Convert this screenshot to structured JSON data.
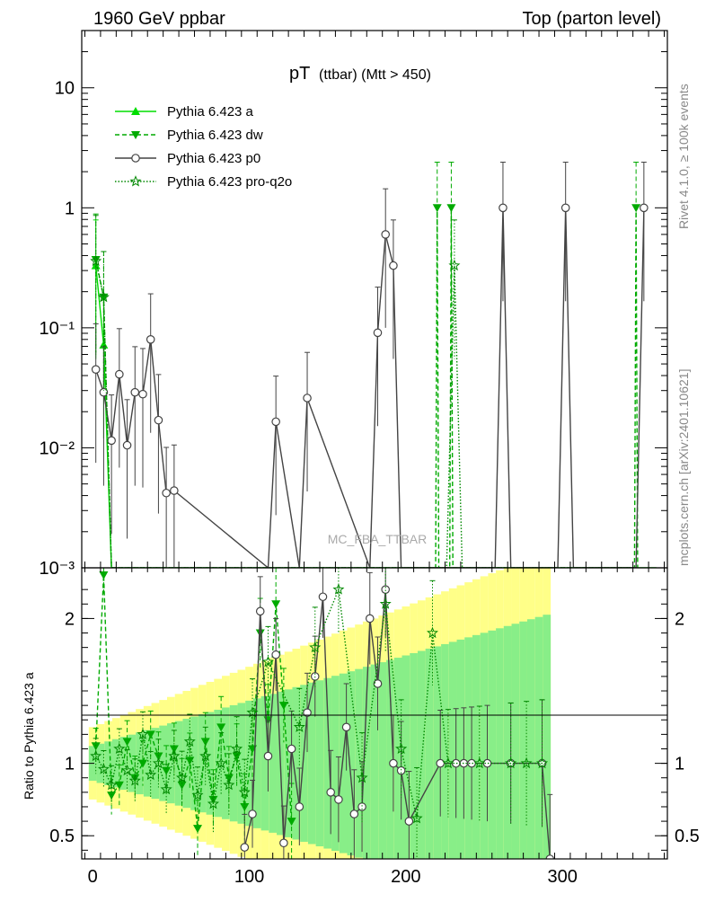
{
  "header": {
    "left": "1960 GeV ppbar",
    "right": "Top (parton level)"
  },
  "side_labels": {
    "rivet": "Rivet 4.1.0, ≥ 100k events",
    "mcplots": "mcplots.cern.ch [arXiv:2401.10621]"
  },
  "watermark": "MC_FBA_TTBAR",
  "title_main": "pT",
  "title_sub": "(ttbar) (Mtt > 450)",
  "colors": {
    "a": "#00dd00",
    "dw": "#00aa00",
    "p0": "#444444",
    "q2o": "#008800",
    "band_yellow": "#ffff88",
    "band_green": "#88ee88"
  },
  "legend": [
    {
      "key": "a",
      "label": "Pythia 6.423 a",
      "marker": "triangle-up",
      "dash": "solid"
    },
    {
      "key": "dw",
      "label": "Pythia 6.423 dw",
      "marker": "triangle-down",
      "dash": "dashed"
    },
    {
      "key": "p0",
      "label": "Pythia 6.423 p0",
      "marker": "circle",
      "dash": "solid"
    },
    {
      "key": "q2o",
      "label": "Pythia 6.423 pro-q2o",
      "marker": "star",
      "dash": "dotted"
    }
  ],
  "chart_data": [
    {
      "type": "line",
      "panel": "main",
      "yscale": "log",
      "xlim": [
        -7,
        367
      ],
      "ylim": [
        0.001,
        30
      ],
      "yticks": [
        {
          "v": 10,
          "label": "10"
        },
        {
          "v": 1,
          "label": "1"
        },
        {
          "v": 0.1,
          "label": "10⁻¹"
        },
        {
          "v": 0.01,
          "label": "10⁻²"
        },
        {
          "v": 0.001,
          "label": "10⁻³"
        }
      ],
      "xlabel": "",
      "ylabel": "",
      "series": [
        {
          "key": "a",
          "name": "Pythia 6.423 a",
          "x": [
            2,
            7,
            12,
            20,
            30,
            40,
            50,
            60,
            80,
            100,
            120,
            140,
            160,
            180,
            200,
            220,
            240,
            260,
            280,
            300,
            320,
            340,
            360
          ],
          "y": [
            0.33,
            0.072,
            0.001,
            0.001,
            0.001,
            0.001,
            0.001,
            0.001,
            0.001,
            0.001,
            0.001,
            0.001,
            0.001,
            0.001,
            0.001,
            0.001,
            0.001,
            0.001,
            0.001,
            0.001,
            0.001,
            0.001,
            0.001
          ]
        },
        {
          "key": "dw",
          "name": "Pythia 6.423 dw",
          "x": [
            2,
            7,
            12,
            100,
            219,
            220,
            221,
            228,
            229,
            230,
            346,
            347,
            348
          ],
          "y": [
            0.37,
            0.18,
            0.001,
            0.001,
            0.001,
            1.0,
            0.001,
            0.001,
            1.0,
            0.001,
            0.001,
            1.0,
            0.001
          ]
        },
        {
          "key": "p0",
          "name": "Pythia 6.423 p0",
          "x": [
            2,
            7,
            12,
            17,
            22,
            27,
            32,
            37,
            42,
            47,
            52,
            112,
            117,
            132,
            137,
            177,
            182,
            187,
            192,
            197,
            257,
            262,
            267,
            297,
            302,
            307,
            347,
            352
          ],
          "y": [
            0.045,
            0.029,
            0.0115,
            0.041,
            0.0105,
            0.029,
            0.028,
            0.08,
            0.017,
            0.0042,
            0.0044,
            0.001,
            0.0165,
            0.001,
            0.026,
            0.001,
            0.091,
            0.6,
            0.33,
            0.001,
            0.001,
            1.0,
            0.001,
            0.001,
            1.0,
            0.001,
            0.001,
            1.0
          ]
        },
        {
          "key": "q2o",
          "name": "Pythia 6.423 pro-q2o",
          "x": [
            2,
            7,
            12,
            100,
            226,
            231,
            236,
            345
          ],
          "y": [
            0.36,
            0.18,
            0.001,
            0.001,
            0.001,
            0.33,
            0.001,
            0.001
          ]
        }
      ]
    },
    {
      "type": "line",
      "panel": "ratio",
      "yscale": "linear",
      "xlim": [
        -7,
        367
      ],
      "ylim": [
        0.34,
        2.35
      ],
      "xticks": [
        0,
        100,
        200,
        300
      ],
      "yticks": [
        0.5,
        1,
        2
      ],
      "ylabel": "Ratio to Pythia 6.423 a",
      "xlabel": "",
      "series": [
        {
          "key": "dw",
          "name": "Pythia 6.423 dw",
          "x": [
            2,
            7,
            12,
            17,
            22,
            27,
            32,
            37,
            42,
            47,
            52,
            57,
            62,
            67,
            72,
            77,
            82,
            87,
            92,
            97,
            102,
            107,
            112,
            117,
            122,
            127
          ],
          "y": [
            1.12,
            2.3,
            0.78,
            0.85,
            1.15,
            0.9,
            1.0,
            1.2,
            1.05,
            0.95,
            1.1,
            0.85,
            1.02,
            0.55,
            1.15,
            0.75,
            1.25,
            0.9,
            1.05,
            0.7,
            1.1,
            1.9,
            1.3,
            2.1,
            1.4,
            0.6
          ]
        },
        {
          "key": "p0",
          "name": "Pythia 6.423 p0",
          "x": [
            97,
            102,
            107,
            112,
            117,
            122,
            127,
            132,
            137,
            142,
            147,
            152,
            157,
            162,
            167,
            172,
            177,
            182,
            187,
            192,
            197,
            202,
            222,
            232,
            237,
            242,
            252,
            267,
            287,
            292
          ],
          "y": [
            0.42,
            0.65,
            2.05,
            1.05,
            1.75,
            0.45,
            1.1,
            0.7,
            1.35,
            1.6,
            2.15,
            0.8,
            0.75,
            1.25,
            0.65,
            0.7,
            2.0,
            1.55,
            2.2,
            1.0,
            0.95,
            0.6,
            1.0,
            1.0,
            1.0,
            1.0,
            1.0,
            1.0,
            1.0,
            0.34
          ]
        },
        {
          "key": "q2o",
          "name": "Pythia 6.423 pro-q2o",
          "x": [
            2,
            7,
            12,
            17,
            22,
            27,
            32,
            37,
            42,
            47,
            52,
            57,
            62,
            67,
            72,
            77,
            82,
            87,
            92,
            97,
            102,
            112,
            132,
            142,
            157,
            172,
            187,
            197,
            207,
            217,
            227,
            247,
            267,
            277,
            287
          ],
          "y": [
            1.05,
            0.96,
            0.85,
            1.1,
            0.95,
            0.88,
            1.2,
            0.92,
            1.0,
            0.82,
            1.05,
            0.9,
            1.15,
            0.78,
            1.05,
            0.72,
            1.0,
            0.85,
            1.1,
            0.8,
            1.35,
            1.7,
            1.25,
            1.8,
            2.2,
            0.9,
            2.1,
            1.1,
            0.62,
            1.9,
            1.0,
            1.0,
            1.0,
            1.0,
            1.0
          ]
        }
      ]
    }
  ]
}
